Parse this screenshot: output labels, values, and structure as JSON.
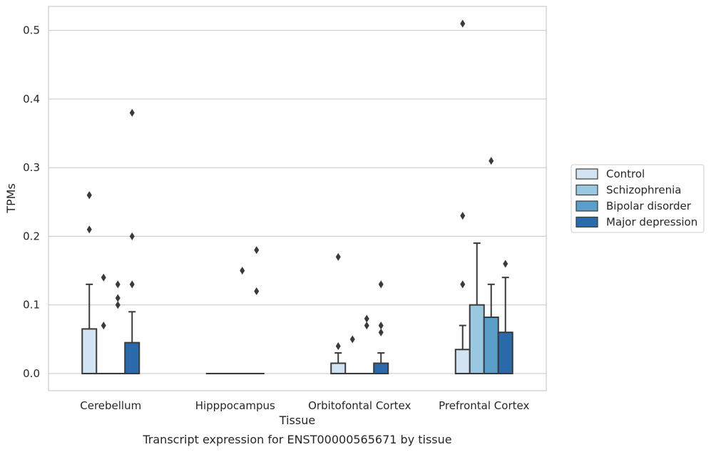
{
  "chart_data": {
    "type": "boxplot",
    "xlabel": "Tissue",
    "ylabel": "TPMs",
    "caption": "Transcript expression for ENST00000565671 by tissue",
    "ylim": [
      -0.025,
      0.535
    ],
    "yticks": [
      "0.0",
      "0.1",
      "0.2",
      "0.3",
      "0.4",
      "0.5"
    ],
    "grid": "horizontal",
    "legend_position": "right",
    "categories": [
      "Cerebellum",
      "Hipppocampus",
      "Orbitofontal Cortex",
      "Prefrontal Cortex"
    ],
    "series": [
      {
        "name": "Control",
        "color": "#d2e3f3",
        "boxes": [
          {
            "q1": 0.0,
            "median": 0.0,
            "q3": 0.065,
            "whisker_low": 0.0,
            "whisker_high": 0.13,
            "outliers": [
              0.21,
              0.26,
              0.26
            ]
          },
          {
            "q1": 0.0,
            "median": 0.0,
            "q3": 0.0,
            "whisker_low": 0.0,
            "whisker_high": 0.0,
            "outliers": []
          },
          {
            "q1": 0.0,
            "median": 0.0,
            "q3": 0.015,
            "whisker_low": 0.0,
            "whisker_high": 0.03,
            "outliers": [
              0.04,
              0.17
            ]
          },
          {
            "q1": 0.0,
            "median": 0.0,
            "q3": 0.035,
            "whisker_low": 0.0,
            "whisker_high": 0.07,
            "outliers": [
              0.13,
              0.23,
              0.51
            ]
          }
        ]
      },
      {
        "name": "Schizophrenia",
        "color": "#9ac8e0",
        "boxes": [
          {
            "q1": 0.0,
            "median": 0.0,
            "q3": 0.0,
            "whisker_low": 0.0,
            "whisker_high": 0.0,
            "outliers": [
              0.07,
              0.14
            ]
          },
          {
            "q1": 0.0,
            "median": 0.0,
            "q3": 0.0,
            "whisker_low": 0.0,
            "whisker_high": 0.0,
            "outliers": []
          },
          {
            "q1": 0.0,
            "median": 0.0,
            "q3": 0.0,
            "whisker_low": 0.0,
            "whisker_high": 0.0,
            "outliers": [
              0.05
            ]
          },
          {
            "q1": 0.0,
            "median": 0.0,
            "q3": 0.1,
            "whisker_low": 0.0,
            "whisker_high": 0.19,
            "outliers": []
          }
        ]
      },
      {
        "name": "Bipolar disorder",
        "color": "#5a9ec9",
        "boxes": [
          {
            "q1": 0.0,
            "median": 0.0,
            "q3": 0.0,
            "whisker_low": 0.0,
            "whisker_high": 0.0,
            "outliers": [
              0.1,
              0.11,
              0.13
            ]
          },
          {
            "q1": 0.0,
            "median": 0.0,
            "q3": 0.0,
            "whisker_low": 0.0,
            "whisker_high": 0.0,
            "outliers": [
              0.15
            ]
          },
          {
            "q1": 0.0,
            "median": 0.0,
            "q3": 0.0,
            "whisker_low": 0.0,
            "whisker_high": 0.0,
            "outliers": [
              0.07,
              0.08
            ]
          },
          {
            "q1": 0.0,
            "median": 0.0,
            "q3": 0.082,
            "whisker_low": 0.0,
            "whisker_high": 0.13,
            "outliers": [
              0.31
            ]
          }
        ]
      },
      {
        "name": "Major depression",
        "color": "#2a6aab",
        "boxes": [
          {
            "q1": 0.0,
            "median": 0.0,
            "q3": 0.045,
            "whisker_low": 0.0,
            "whisker_high": 0.09,
            "outliers": [
              0.13,
              0.2,
              0.38
            ]
          },
          {
            "q1": 0.0,
            "median": 0.0,
            "q3": 0.0,
            "whisker_low": 0.0,
            "whisker_high": 0.0,
            "outliers": [
              0.12,
              0.18
            ]
          },
          {
            "q1": 0.0,
            "median": 0.0,
            "q3": 0.015,
            "whisker_low": 0.0,
            "whisker_high": 0.03,
            "outliers": [
              0.06,
              0.07,
              0.13
            ]
          },
          {
            "q1": 0.0,
            "median": 0.0,
            "q3": 0.06,
            "whisker_low": 0.0,
            "whisker_high": 0.14,
            "outliers": [
              0.16
            ]
          }
        ]
      }
    ]
  }
}
